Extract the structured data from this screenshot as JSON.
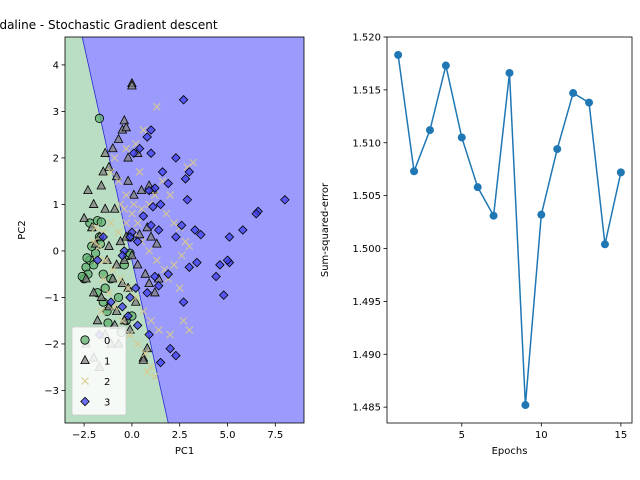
{
  "chart_data": [
    {
      "type": "scatter",
      "title": "Adaline - Stochastic Gradient descent",
      "xlabel": "PC1",
      "ylabel": "PC2",
      "xlim": [
        -3.5,
        9.0
      ],
      "ylim": [
        -3.7,
        4.6
      ],
      "xticks": [
        -2.5,
        0.0,
        2.5,
        5.0,
        7.5
      ],
      "xtick_labels": [
        "−2.5",
        "0.0",
        "2.5",
        "5.0",
        "7.5"
      ],
      "yticks": [
        -3,
        -2,
        -1,
        0,
        1,
        2,
        3,
        4
      ],
      "ytick_labels": [
        "−3",
        "−2",
        "−1",
        "0",
        "1",
        "2",
        "3",
        "4"
      ],
      "grid": false,
      "legend_position": "bottom-left",
      "decision_regions": [
        {
          "class": "0",
          "color": "#b9dec3",
          "polygon": [
            [
              -3.5,
              -3.7
            ],
            [
              -3.5,
              4.6
            ],
            [
              -2.6,
              4.6
            ],
            [
              1.9,
              -3.7
            ]
          ]
        },
        {
          "class": "3",
          "color": "#9a9bfc",
          "polygon": [
            [
              -2.6,
              4.6
            ],
            [
              9.0,
              4.6
            ],
            [
              9.0,
              -3.7
            ],
            [
              1.9,
              -3.7
            ]
          ]
        }
      ],
      "series": [
        {
          "name": "0",
          "marker": "circle",
          "color": "#5fb26f",
          "edge": "#000000",
          "points": [
            [
              -1.7,
              2.85
            ],
            [
              -2.2,
              0.6
            ],
            [
              -1.8,
              0.65
            ],
            [
              -1.6,
              0.62
            ],
            [
              -2.4,
              -0.35
            ],
            [
              -2.3,
              -0.5
            ],
            [
              -2.5,
              -0.6
            ],
            [
              -2.2,
              -0.2
            ],
            [
              -2.0,
              -0.3
            ],
            [
              -1.9,
              -0.05
            ],
            [
              -2.1,
              0.1
            ],
            [
              -1.7,
              0.3
            ],
            [
              -1.5,
              -0.5
            ],
            [
              -1.8,
              -0.9
            ],
            [
              -1.5,
              -1.1
            ],
            [
              -1.3,
              -1.3
            ],
            [
              -0.7,
              -1.0
            ],
            [
              -0.4,
              -0.3
            ],
            [
              -0.2,
              -0.1
            ],
            [
              -0.1,
              -0.05
            ],
            [
              0.0,
              -1.4
            ],
            [
              -0.3,
              -1.5
            ],
            [
              -1.4,
              -0.8
            ],
            [
              -1.1,
              -0.6
            ],
            [
              -2.6,
              -0.55
            ],
            [
              -2.35,
              -0.15
            ],
            [
              -1.65,
              0.15
            ],
            [
              -1.25,
              -1.55
            ],
            [
              -0.55,
              -1.75
            ],
            [
              -0.1,
              0.3
            ]
          ]
        },
        {
          "name": "1",
          "marker": "triangle",
          "color": "#808080",
          "edge": "#000000",
          "points": [
            [
              0.0,
              3.6
            ],
            [
              0.0,
              3.55
            ],
            [
              -0.5,
              2.6
            ],
            [
              -0.4,
              2.8
            ],
            [
              -0.3,
              2.65
            ],
            [
              -0.7,
              2.4
            ],
            [
              -1.0,
              2.2
            ],
            [
              -1.4,
              2.1
            ],
            [
              -1.2,
              1.8
            ],
            [
              -0.8,
              1.6
            ],
            [
              -0.2,
              1.5
            ],
            [
              0.1,
              1.2
            ],
            [
              0.5,
              1.3
            ],
            [
              0.9,
              1.4
            ],
            [
              1.1,
              1.3
            ],
            [
              -1.6,
              1.4
            ],
            [
              -2.3,
              1.3
            ],
            [
              -2.0,
              1.0
            ],
            [
              -1.4,
              0.9
            ],
            [
              -0.9,
              0.9
            ],
            [
              -2.5,
              0.7
            ],
            [
              -2.1,
              0.5
            ],
            [
              -1.7,
              0.3
            ],
            [
              -1.2,
              0.1
            ],
            [
              -0.6,
              0.2
            ],
            [
              -0.3,
              0.3
            ],
            [
              0.4,
              0.35
            ],
            [
              0.8,
              0.5
            ],
            [
              1.0,
              0.3
            ],
            [
              1.3,
              0.15
            ],
            [
              -1.3,
              -0.2
            ],
            [
              -0.8,
              -0.3
            ],
            [
              -0.4,
              -0.2
            ],
            [
              0.0,
              -0.1
            ],
            [
              0.3,
              -0.3
            ],
            [
              0.7,
              -0.5
            ],
            [
              0.9,
              -0.7
            ],
            [
              1.2,
              -0.9
            ],
            [
              1.4,
              -0.6
            ],
            [
              -1.0,
              -0.6
            ],
            [
              -0.5,
              -0.7
            ],
            [
              -0.2,
              -0.8
            ],
            [
              -2.0,
              -0.9
            ],
            [
              -1.6,
              -1.0
            ],
            [
              -1.2,
              -1.2
            ],
            [
              -0.8,
              -1.3
            ],
            [
              -0.4,
              -1.5
            ],
            [
              -0.1,
              -1.7
            ],
            [
              -1.8,
              -1.5
            ],
            [
              -1.4,
              -1.8
            ],
            [
              -1.1,
              -2.0
            ],
            [
              -0.7,
              -2.0
            ],
            [
              -2.4,
              -2.0
            ],
            [
              -2.0,
              -2.3
            ],
            [
              -1.7,
              -2.5
            ],
            [
              0.6,
              -2.3
            ],
            [
              0.6,
              -2.35
            ],
            [
              0.8,
              -2.1
            ],
            [
              -0.9,
              -1.6
            ],
            [
              -0.2,
              2.0
            ],
            [
              0.3,
              2.1
            ],
            [
              -1.9,
              0.15
            ],
            [
              -2.4,
              -0.6
            ],
            [
              -1.5,
              1.7
            ],
            [
              0.2,
              -1.1
            ]
          ]
        },
        {
          "name": "2",
          "marker": "x",
          "color": "#d8c98f",
          "edge": "#d8c98f",
          "points": [
            [
              1.3,
              3.1
            ],
            [
              0.6,
              2.6
            ],
            [
              0.2,
              2.3
            ],
            [
              -0.3,
              2.2
            ],
            [
              -0.9,
              2.0
            ],
            [
              -1.1,
              1.7
            ],
            [
              -0.7,
              1.5
            ],
            [
              -0.3,
              1.2
            ],
            [
              0.1,
              1.0
            ],
            [
              0.5,
              0.9
            ],
            [
              0.9,
              1.0
            ],
            [
              1.2,
              1.2
            ],
            [
              1.6,
              1.5
            ],
            [
              2.2,
              0.6
            ],
            [
              2.5,
              0.5
            ],
            [
              2.8,
              0.2
            ],
            [
              3.0,
              0.1
            ],
            [
              2.6,
              -0.1
            ],
            [
              2.2,
              -0.3
            ],
            [
              1.9,
              -0.6
            ],
            [
              2.5,
              -0.8
            ],
            [
              2.7,
              -1.5
            ],
            [
              3.0,
              -1.7
            ],
            [
              2.0,
              -1.8
            ],
            [
              1.4,
              -1.7
            ],
            [
              1.0,
              -1.5
            ],
            [
              0.6,
              -1.3
            ],
            [
              0.2,
              -1.0
            ],
            [
              -0.2,
              -0.8
            ],
            [
              -0.6,
              -0.6
            ],
            [
              -1.0,
              -0.4
            ],
            [
              -1.4,
              -0.2
            ],
            [
              -1.7,
              0.1
            ],
            [
              -1.5,
              0.4
            ],
            [
              -1.1,
              0.6
            ],
            [
              -0.7,
              0.4
            ],
            [
              -0.3,
              0.6
            ],
            [
              0.1,
              0.4
            ],
            [
              0.5,
              0.2
            ],
            [
              0.9,
              0.0
            ],
            [
              1.3,
              -0.2
            ],
            [
              1.7,
              -0.4
            ],
            [
              -1.9,
              0.5
            ],
            [
              -2.0,
              0.2
            ],
            [
              -1.8,
              -0.2
            ],
            [
              -1.5,
              -0.6
            ],
            [
              -1.2,
              -0.9
            ],
            [
              -0.9,
              -1.2
            ],
            [
              -0.5,
              -1.5
            ],
            [
              -0.1,
              -1.8
            ],
            [
              0.3,
              -2.0
            ],
            [
              0.7,
              -2.2
            ],
            [
              1.0,
              -2.5
            ],
            [
              1.2,
              -2.7
            ],
            [
              -0.4,
              0.9
            ],
            [
              0.0,
              0.8
            ],
            [
              0.3,
              0.6
            ],
            [
              1.8,
              0.8
            ],
            [
              2.0,
              1.2
            ],
            [
              3.2,
              1.9
            ],
            [
              2.9,
              1.8
            ],
            [
              0.8,
              -2.6
            ],
            [
              -1.6,
              -1.3
            ],
            [
              -0.6,
              1.0
            ],
            [
              0.4,
              1.7
            ]
          ]
        },
        {
          "name": "3",
          "marker": "diamond",
          "color": "#3f3ff0",
          "edge": "#000000",
          "points": [
            [
              2.7,
              3.25
            ],
            [
              1.0,
              2.6
            ],
            [
              0.8,
              2.45
            ],
            [
              1.0,
              2.1
            ],
            [
              0.4,
              2.2
            ],
            [
              0.1,
              2.1
            ],
            [
              2.3,
              2.0
            ],
            [
              3.0,
              1.7
            ],
            [
              2.8,
              1.55
            ],
            [
              1.9,
              1.45
            ],
            [
              1.2,
              1.35
            ],
            [
              0.9,
              1.3
            ],
            [
              1.5,
              1.0
            ],
            [
              1.1,
              0.95
            ],
            [
              2.9,
              1.1
            ],
            [
              0.6,
              0.75
            ],
            [
              1.0,
              0.55
            ],
            [
              1.4,
              0.45
            ],
            [
              0.0,
              0.4
            ],
            [
              -0.1,
              0.3
            ],
            [
              0.3,
              0.2
            ],
            [
              -0.4,
              0.0
            ],
            [
              -0.5,
              -0.1
            ],
            [
              3.3,
              0.45
            ],
            [
              3.6,
              0.35
            ],
            [
              5.8,
              0.45
            ],
            [
              5.1,
              0.3
            ],
            [
              6.6,
              0.85
            ],
            [
              6.5,
              0.8
            ],
            [
              8.0,
              1.1
            ],
            [
              5.1,
              -0.25
            ],
            [
              5.0,
              -0.2
            ],
            [
              4.6,
              -0.3
            ],
            [
              3.4,
              -0.25
            ],
            [
              2.3,
              0.3
            ],
            [
              3.0,
              -0.35
            ],
            [
              1.9,
              -0.5
            ],
            [
              1.4,
              -0.75
            ],
            [
              1.2,
              -0.55
            ],
            [
              0.8,
              -0.9
            ],
            [
              0.2,
              -0.8
            ],
            [
              -0.1,
              -1.0
            ],
            [
              -0.5,
              -1.2
            ],
            [
              -1.1,
              -1.1
            ],
            [
              -1.7,
              -1.8
            ],
            [
              -0.2,
              -1.4
            ],
            [
              0.3,
              -1.6
            ],
            [
              0.9,
              -1.8
            ],
            [
              2.0,
              -2.1
            ],
            [
              2.3,
              -2.25
            ],
            [
              1.5,
              -2.4
            ],
            [
              2.7,
              -1.1
            ],
            [
              4.4,
              -0.55
            ],
            [
              4.8,
              -0.95
            ],
            [
              -1.8,
              -0.2
            ],
            [
              -1.5,
              0.3
            ],
            [
              1.6,
              1.7
            ],
            [
              2.6,
              0.55
            ]
          ]
        }
      ]
    },
    {
      "type": "line",
      "title": "",
      "xlabel": "Epochs",
      "ylabel": "Sum-squared-error",
      "xlim": [
        0.3,
        15.7
      ],
      "ylim": [
        1.4835,
        1.52
      ],
      "xticks": [
        5,
        10,
        15
      ],
      "xtick_labels": [
        "5",
        "10",
        "15"
      ],
      "yticks": [
        1.485,
        1.49,
        1.495,
        1.5,
        1.505,
        1.51,
        1.515,
        1.52
      ],
      "ytick_labels": [
        "1.485",
        "1.490",
        "1.495",
        "1.500",
        "1.505",
        "1.510",
        "1.515",
        "1.520"
      ],
      "grid": false,
      "color": "#1f77b4",
      "x": [
        1,
        2,
        3,
        4,
        5,
        6,
        7,
        8,
        9,
        10,
        11,
        12,
        13,
        14,
        15
      ],
      "y": [
        1.5183,
        1.5073,
        1.5112,
        1.5173,
        1.5105,
        1.5058,
        1.5031,
        1.5166,
        1.4852,
        1.5032,
        1.5094,
        1.5147,
        1.5138,
        1.5004,
        1.5072
      ]
    }
  ]
}
